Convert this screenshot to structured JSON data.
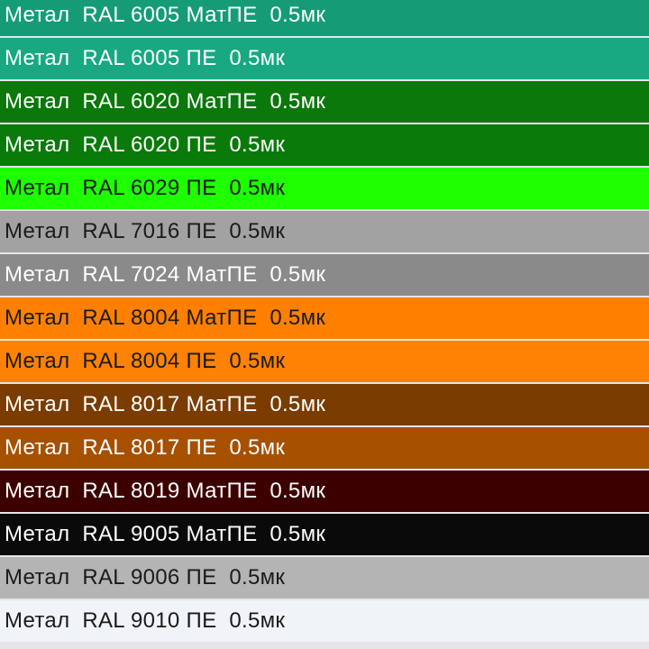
{
  "list": {
    "rows": [
      {
        "label": "Метал  RAL 6005 МатПЕ  0.5мк",
        "color": "#159c76"
      },
      {
        "label": "Метал  RAL 6005 ПЕ  0.5мк",
        "color": "#18a882"
      },
      {
        "label": "Метал  RAL 6020 МатПЕ  0.5мк",
        "color": "#0a780a"
      },
      {
        "label": "Метал  RAL 6020 ПЕ  0.5мк",
        "color": "#0a7a0a"
      },
      {
        "label": "Метал  RAL 6029 ПЕ  0.5мк",
        "color": "#1eff00"
      },
      {
        "label": "Метал  RAL 7016 ПЕ  0.5мк",
        "color": "#a2a2a2"
      },
      {
        "label": "Метал  RAL 7024 МатПЕ  0.5мк",
        "color": "#8a8a8a"
      },
      {
        "label": "Метал  RAL 8004 МатПЕ  0.5мк",
        "color": "#ff8000"
      },
      {
        "label": "Метал  RAL 8004 ПЕ  0.5мк",
        "color": "#ff8204"
      },
      {
        "label": "Метал  RAL 8017 МатПЕ  0.5мк",
        "color": "#7a3c00"
      },
      {
        "label": "Метал  RAL 8017 ПЕ  0.5мк",
        "color": "#a65000"
      },
      {
        "label": "Метал  RAL 8019 МатПЕ  0.5мк",
        "color": "#3c0000"
      },
      {
        "label": "Метал  RAL 9005 МатПЕ  0.5мк",
        "color": "#0a0a0a"
      },
      {
        "label": "Метал  RAL 9006 ПЕ  0.5мк",
        "color": "#b4b4b4"
      },
      {
        "label": "Метал  RAL 9010 ПЕ  0.5мк",
        "color": "#f0f4f8"
      }
    ]
  }
}
